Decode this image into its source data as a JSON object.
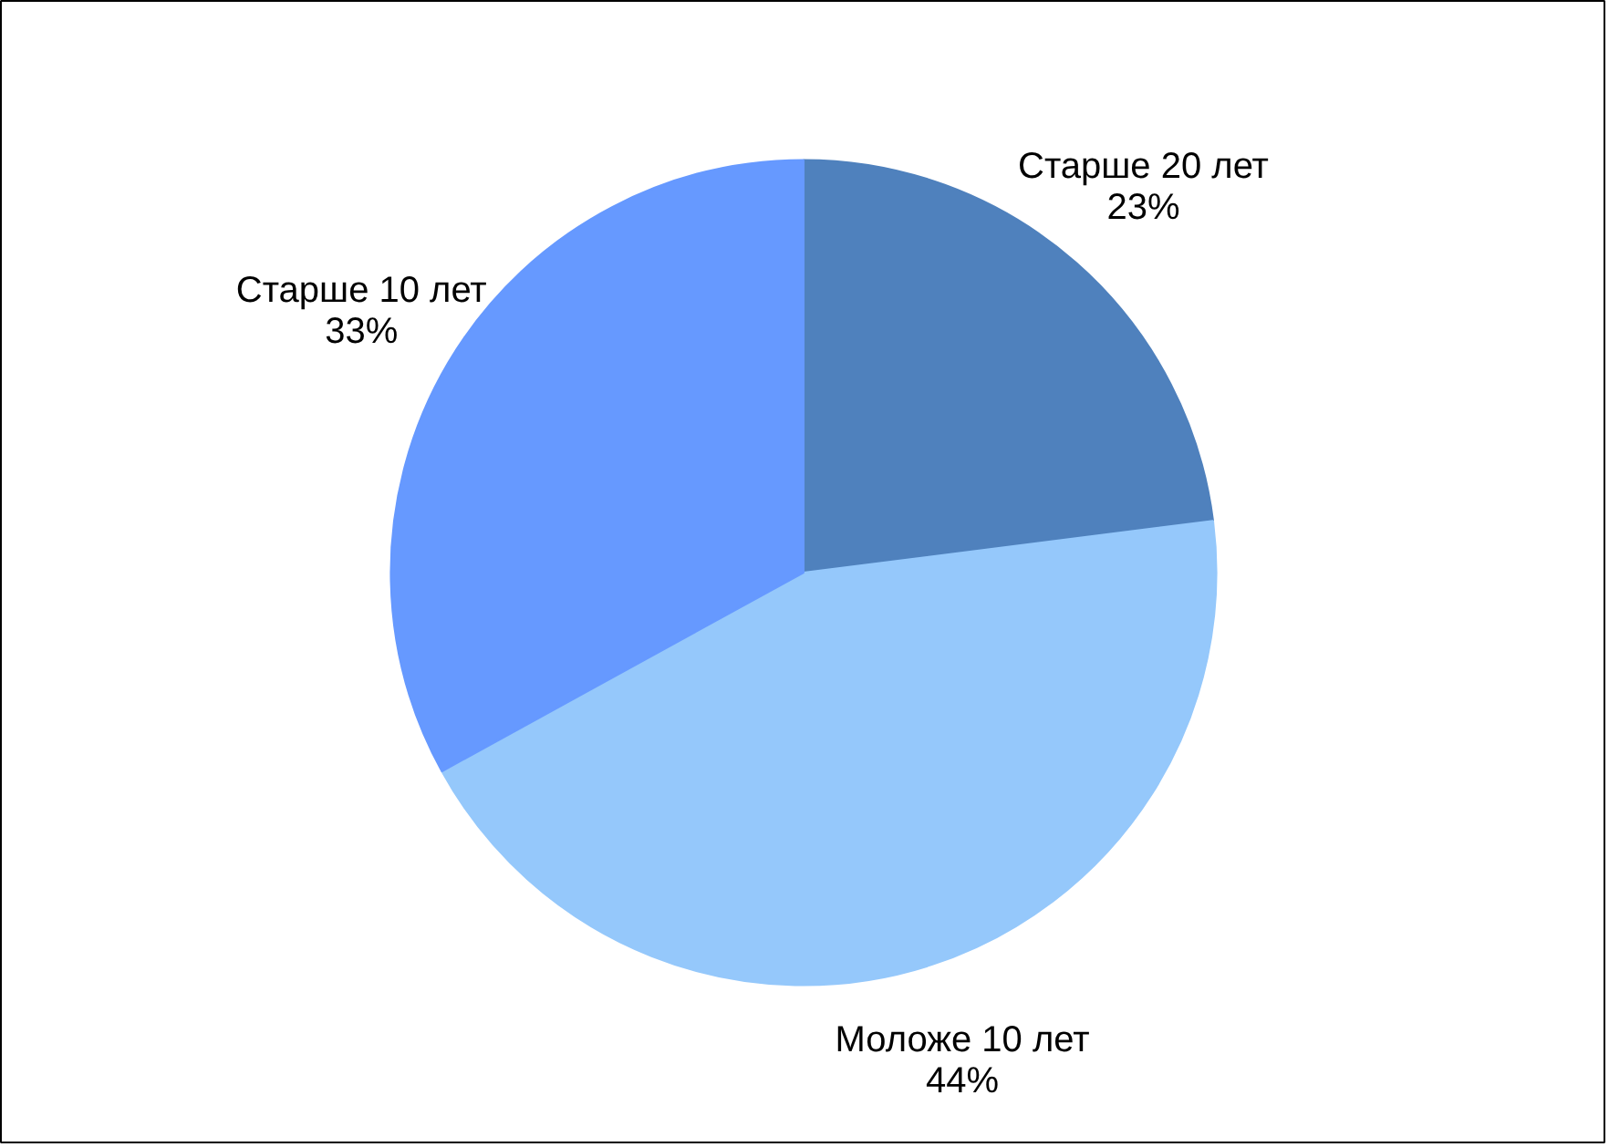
{
  "chart_data": {
    "type": "pie",
    "categories": [
      "Старше 20 лет",
      "Моложе 10 лет",
      "Старше 10 лет"
    ],
    "values": [
      23,
      44,
      33
    ],
    "colors": [
      "#4f81bd",
      "#95c8fb",
      "#6699ff"
    ],
    "value_labels": [
      "23%",
      "44%",
      "33%"
    ]
  }
}
